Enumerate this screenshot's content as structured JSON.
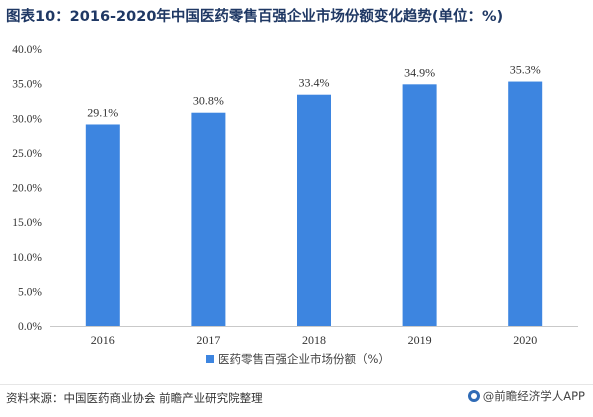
{
  "title": "图表10：2016-2020年中国医药零售百强企业市场份额变化趋势(单位：%)",
  "chart_data": {
    "type": "bar",
    "categories": [
      "2016",
      "2017",
      "2018",
      "2019",
      "2020"
    ],
    "series": [
      {
        "name": "医药零售百强企业市场份额（%）",
        "values": [
          29.1,
          30.8,
          33.4,
          34.9,
          35.3
        ]
      }
    ],
    "data_labels": [
      "29.1%",
      "30.8%",
      "33.4%",
      "34.9%",
      "35.3%"
    ],
    "y_ticks": [
      "0.0%",
      "5.0%",
      "10.0%",
      "15.0%",
      "20.0%",
      "25.0%",
      "30.0%",
      "35.0%",
      "40.0%"
    ],
    "ylim": [
      0,
      40
    ],
    "grid": false,
    "legend_position": "bottom",
    "bar_color": "#3d85e0"
  },
  "footer": {
    "source": "资料来源：中国医药商业协会 前瞻产业研究院整理",
    "brand": "@前瞻经济学人APP"
  }
}
